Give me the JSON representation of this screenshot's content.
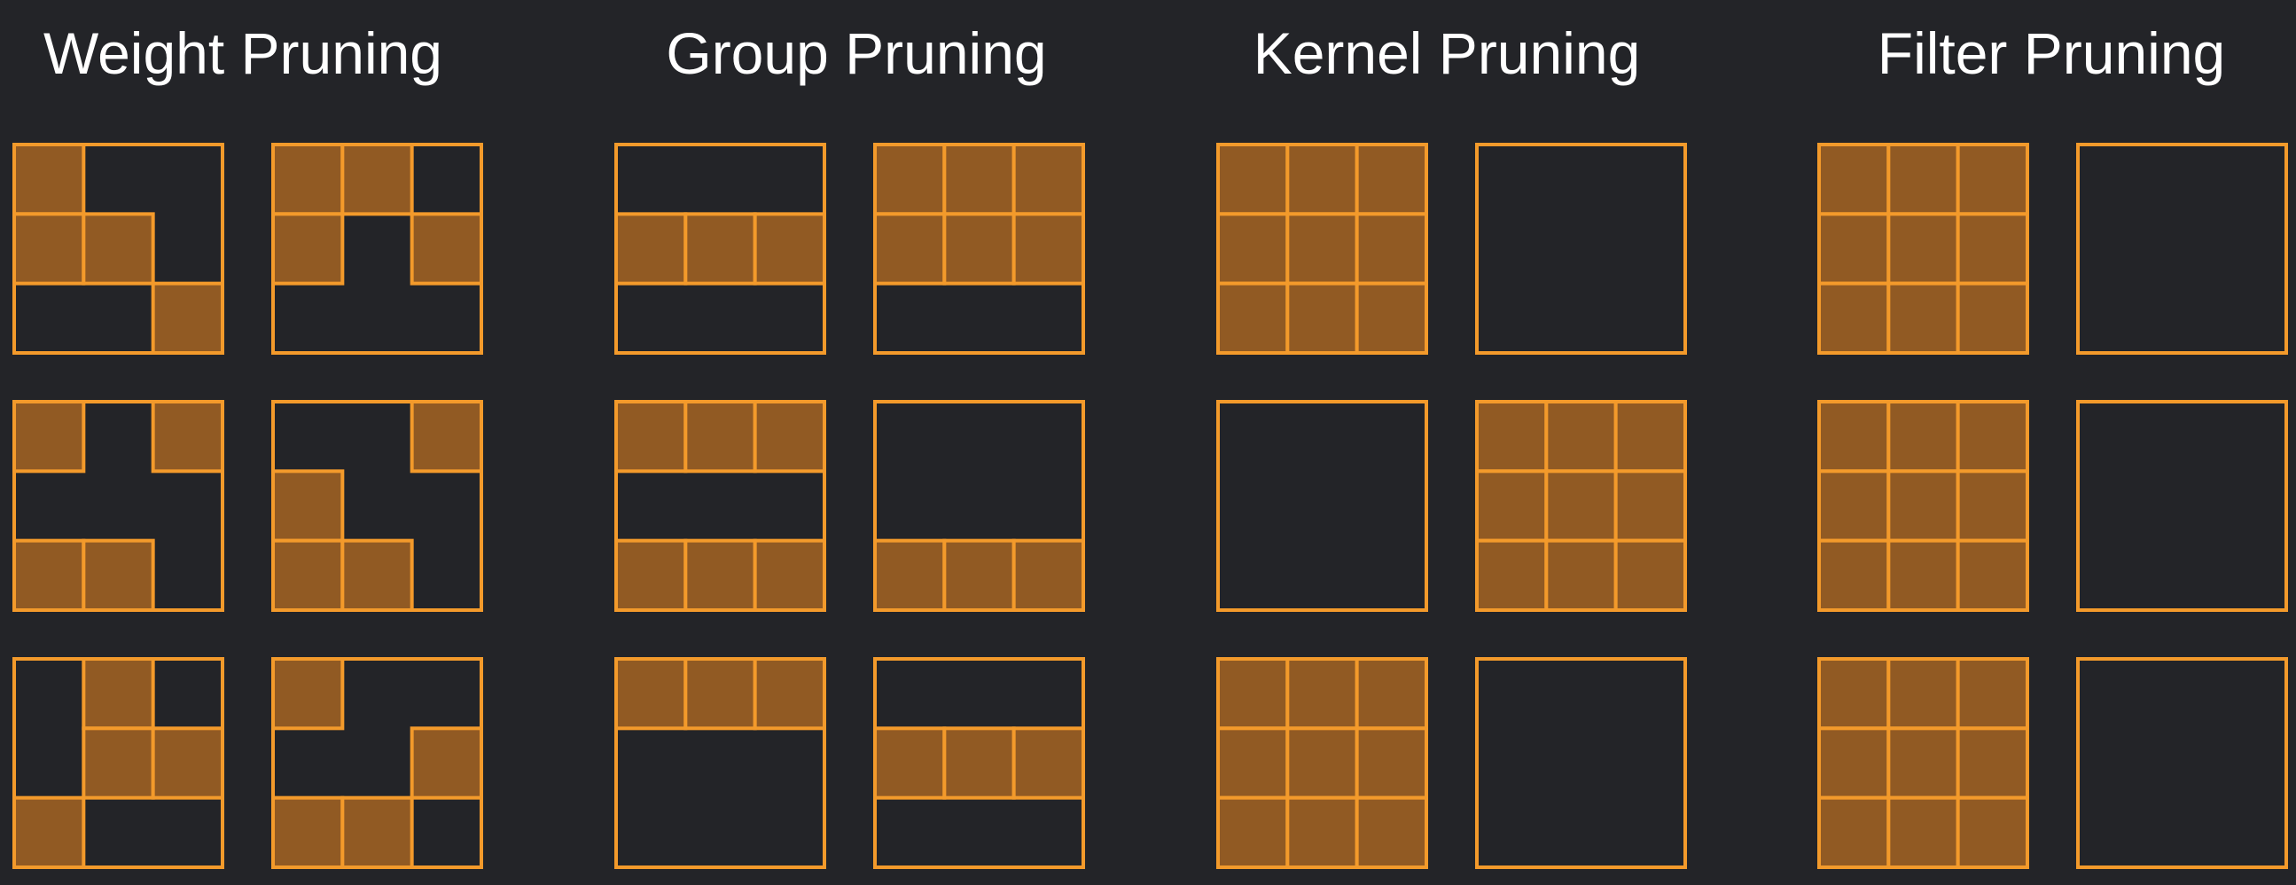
{
  "colors": {
    "background": "#232428",
    "outline": "#F39A2B",
    "pruned_fill": "#915A23",
    "title_text": "#FFFFFF"
  },
  "sections": [
    {
      "key": "weight",
      "title": "Weight Pruning",
      "kernels": [
        [
          [
            1,
            0,
            0
          ],
          [
            1,
            1,
            0
          ],
          [
            0,
            0,
            1
          ]
        ],
        [
          [
            1,
            1,
            0
          ],
          [
            1,
            0,
            1
          ],
          [
            0,
            0,
            0
          ]
        ],
        [
          [
            1,
            0,
            1
          ],
          [
            0,
            0,
            0
          ],
          [
            1,
            1,
            0
          ]
        ],
        [
          [
            0,
            0,
            1
          ],
          [
            1,
            0,
            0
          ],
          [
            1,
            1,
            0
          ]
        ],
        [
          [
            0,
            1,
            0
          ],
          [
            0,
            1,
            1
          ],
          [
            1,
            0,
            0
          ]
        ],
        [
          [
            1,
            0,
            0
          ],
          [
            0,
            0,
            1
          ],
          [
            1,
            1,
            0
          ]
        ]
      ]
    },
    {
      "key": "group",
      "title": "Group Pruning",
      "kernels": [
        [
          [
            0,
            0,
            0
          ],
          [
            1,
            1,
            1
          ],
          [
            0,
            0,
            0
          ]
        ],
        [
          [
            1,
            1,
            1
          ],
          [
            1,
            1,
            1
          ],
          [
            0,
            0,
            0
          ]
        ],
        [
          [
            1,
            1,
            1
          ],
          [
            0,
            0,
            0
          ],
          [
            1,
            1,
            1
          ]
        ],
        [
          [
            0,
            0,
            0
          ],
          [
            0,
            0,
            0
          ],
          [
            1,
            1,
            1
          ]
        ],
        [
          [
            1,
            1,
            1
          ],
          [
            0,
            0,
            0
          ],
          [
            0,
            0,
            0
          ]
        ],
        [
          [
            0,
            0,
            0
          ],
          [
            1,
            1,
            1
          ],
          [
            0,
            0,
            0
          ]
        ]
      ]
    },
    {
      "key": "kernel",
      "title": "Kernel Pruning",
      "kernels": [
        [
          [
            1,
            1,
            1
          ],
          [
            1,
            1,
            1
          ],
          [
            1,
            1,
            1
          ]
        ],
        [
          [
            0,
            0,
            0
          ],
          [
            0,
            0,
            0
          ],
          [
            0,
            0,
            0
          ]
        ],
        [
          [
            0,
            0,
            0
          ],
          [
            0,
            0,
            0
          ],
          [
            0,
            0,
            0
          ]
        ],
        [
          [
            1,
            1,
            1
          ],
          [
            1,
            1,
            1
          ],
          [
            1,
            1,
            1
          ]
        ],
        [
          [
            1,
            1,
            1
          ],
          [
            1,
            1,
            1
          ],
          [
            1,
            1,
            1
          ]
        ],
        [
          [
            0,
            0,
            0
          ],
          [
            0,
            0,
            0
          ],
          [
            0,
            0,
            0
          ]
        ]
      ]
    },
    {
      "key": "filter",
      "title": "Filter Pruning",
      "kernels": [
        [
          [
            1,
            1,
            1
          ],
          [
            1,
            1,
            1
          ],
          [
            1,
            1,
            1
          ]
        ],
        [
          [
            0,
            0,
            0
          ],
          [
            0,
            0,
            0
          ],
          [
            0,
            0,
            0
          ]
        ],
        [
          [
            1,
            1,
            1
          ],
          [
            1,
            1,
            1
          ],
          [
            1,
            1,
            1
          ]
        ],
        [
          [
            0,
            0,
            0
          ],
          [
            0,
            0,
            0
          ],
          [
            0,
            0,
            0
          ]
        ],
        [
          [
            1,
            1,
            1
          ],
          [
            1,
            1,
            1
          ],
          [
            1,
            1,
            1
          ]
        ],
        [
          [
            0,
            0,
            0
          ],
          [
            0,
            0,
            0
          ],
          [
            0,
            0,
            0
          ]
        ]
      ]
    }
  ]
}
